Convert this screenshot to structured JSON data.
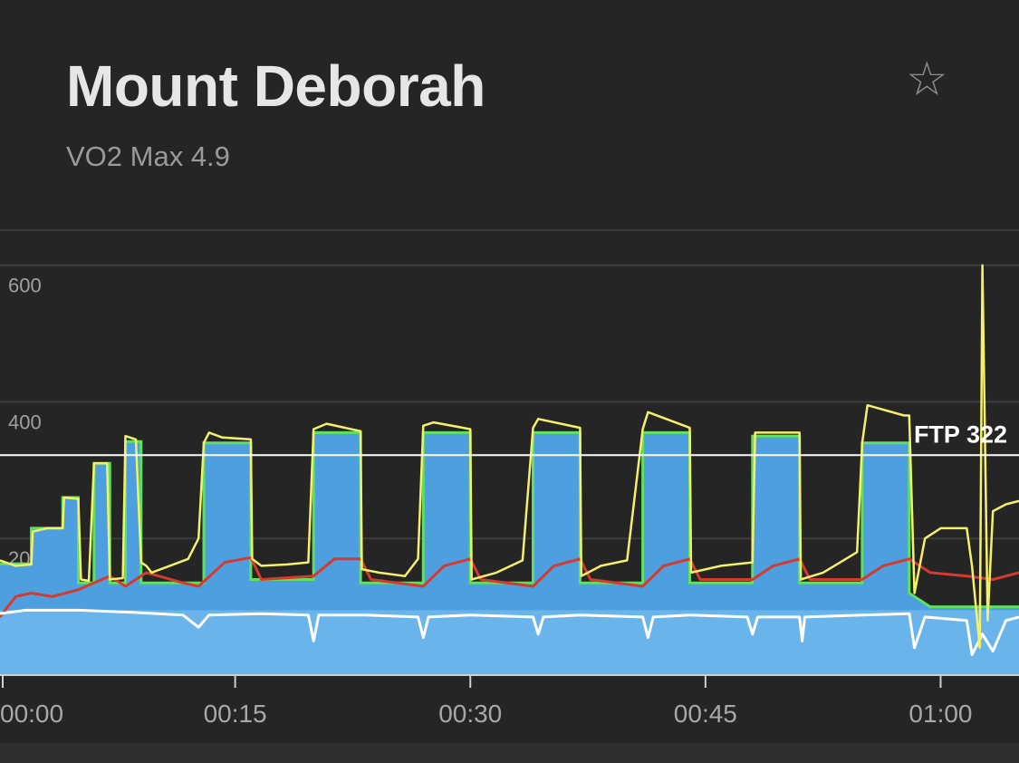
{
  "header": {
    "title": "Mount Deborah",
    "subtitle": "VO2 Max 4.9",
    "favorite_icon": "star-outline-icon"
  },
  "colors": {
    "background": "#252525",
    "target_fill": "#4d9fe0",
    "target_outline": "#5fe05f",
    "power": "#f5f06a",
    "heart_rate": "#d63a2e",
    "cadence": "#ffffff",
    "ftp_line": "#ffffff"
  },
  "chart_data": {
    "type": "line",
    "x_unit": "seconds",
    "xlim": [
      0,
      3900
    ],
    "ylim": [
      0,
      650
    ],
    "y_ticks": [
      {
        "value": 200,
        "label": "200"
      },
      {
        "value": 400,
        "label": "400"
      },
      {
        "value": 600,
        "label": "600"
      }
    ],
    "x_ticks": [
      {
        "value": 0,
        "label": "00:00"
      },
      {
        "value": 900,
        "label": "00:15"
      },
      {
        "value": 1800,
        "label": "00:30"
      },
      {
        "value": 2700,
        "label": "00:45"
      },
      {
        "value": 3600,
        "label": "01:00"
      }
    ],
    "grid": true,
    "ftp": {
      "value": 322,
      "label": "FTP 322"
    },
    "target_power": {
      "name": "",
      "points": [
        [
          0,
          163
        ],
        [
          120,
          163
        ],
        [
          120,
          215
        ],
        [
          240,
          215
        ],
        [
          240,
          260
        ],
        [
          300,
          260
        ],
        [
          300,
          135
        ],
        [
          360,
          135
        ],
        [
          360,
          310
        ],
        [
          420,
          310
        ],
        [
          420,
          135
        ],
        [
          480,
          135
        ],
        [
          480,
          342
        ],
        [
          540,
          342
        ],
        [
          540,
          135
        ],
        [
          780,
          135
        ],
        [
          780,
          340
        ],
        [
          960,
          340
        ],
        [
          960,
          140
        ],
        [
          1200,
          140
        ],
        [
          1200,
          355
        ],
        [
          1380,
          355
        ],
        [
          1380,
          135
        ],
        [
          1620,
          135
        ],
        [
          1620,
          355
        ],
        [
          1800,
          355
        ],
        [
          1800,
          135
        ],
        [
          2040,
          135
        ],
        [
          2040,
          355
        ],
        [
          2220,
          355
        ],
        [
          2220,
          135
        ],
        [
          2460,
          135
        ],
        [
          2460,
          355
        ],
        [
          2640,
          355
        ],
        [
          2640,
          135
        ],
        [
          2880,
          135
        ],
        [
          2880,
          350
        ],
        [
          3060,
          350
        ],
        [
          3060,
          135
        ],
        [
          3300,
          135
        ],
        [
          3300,
          340
        ],
        [
          3480,
          340
        ],
        [
          3480,
          120
        ],
        [
          3560,
          100
        ],
        [
          3900,
          100
        ]
      ]
    },
    "power": {
      "name": "",
      "points": [
        [
          0,
          168
        ],
        [
          60,
          160
        ],
        [
          120,
          162
        ],
        [
          125,
          210
        ],
        [
          180,
          215
        ],
        [
          240,
          215
        ],
        [
          245,
          260
        ],
        [
          300,
          258
        ],
        [
          310,
          140
        ],
        [
          340,
          138
        ],
        [
          360,
          310
        ],
        [
          410,
          310
        ],
        [
          420,
          140
        ],
        [
          470,
          142
        ],
        [
          480,
          350
        ],
        [
          520,
          345
        ],
        [
          540,
          165
        ],
        [
          560,
          160
        ],
        [
          580,
          150
        ],
        [
          650,
          160
        ],
        [
          720,
          170
        ],
        [
          760,
          200
        ],
        [
          780,
          340
        ],
        [
          800,
          355
        ],
        [
          850,
          348
        ],
        [
          960,
          345
        ],
        [
          965,
          170
        ],
        [
          1000,
          160
        ],
        [
          1100,
          162
        ],
        [
          1180,
          165
        ],
        [
          1200,
          360
        ],
        [
          1250,
          368
        ],
        [
          1380,
          357
        ],
        [
          1385,
          155
        ],
        [
          1450,
          150
        ],
        [
          1550,
          145
        ],
        [
          1600,
          170
        ],
        [
          1620,
          365
        ],
        [
          1660,
          370
        ],
        [
          1800,
          360
        ],
        [
          1805,
          140
        ],
        [
          1900,
          150
        ],
        [
          2000,
          168
        ],
        [
          2040,
          362
        ],
        [
          2060,
          375
        ],
        [
          2220,
          362
        ],
        [
          2225,
          145
        ],
        [
          2300,
          160
        ],
        [
          2400,
          168
        ],
        [
          2460,
          360
        ],
        [
          2480,
          385
        ],
        [
          2640,
          362
        ],
        [
          2645,
          150
        ],
        [
          2760,
          160
        ],
        [
          2880,
          165
        ],
        [
          2890,
          355
        ],
        [
          3060,
          355
        ],
        [
          3065,
          140
        ],
        [
          3150,
          150
        ],
        [
          3280,
          180
        ],
        [
          3300,
          340
        ],
        [
          3320,
          395
        ],
        [
          3460,
          380
        ],
        [
          3480,
          380
        ],
        [
          3500,
          120
        ],
        [
          3540,
          200
        ],
        [
          3600,
          215
        ],
        [
          3700,
          215
        ],
        [
          3720,
          160
        ],
        [
          3750,
          40
        ],
        [
          3760,
          600
        ],
        [
          3780,
          80
        ],
        [
          3800,
          240
        ],
        [
          3850,
          250
        ],
        [
          3900,
          255
        ]
      ]
    },
    "heart_rate": {
      "name": "",
      "points": [
        [
          0,
          85
        ],
        [
          60,
          115
        ],
        [
          120,
          120
        ],
        [
          200,
          115
        ],
        [
          300,
          125
        ],
        [
          420,
          145
        ],
        [
          480,
          130
        ],
        [
          560,
          150
        ],
        [
          700,
          135
        ],
        [
          760,
          130
        ],
        [
          860,
          165
        ],
        [
          960,
          172
        ],
        [
          1000,
          140
        ],
        [
          1200,
          145
        ],
        [
          1280,
          170
        ],
        [
          1380,
          170
        ],
        [
          1420,
          140
        ],
        [
          1620,
          130
        ],
        [
          1700,
          160
        ],
        [
          1800,
          170
        ],
        [
          1840,
          140
        ],
        [
          2040,
          130
        ],
        [
          2120,
          160
        ],
        [
          2220,
          170
        ],
        [
          2260,
          140
        ],
        [
          2460,
          130
        ],
        [
          2540,
          160
        ],
        [
          2640,
          170
        ],
        [
          2680,
          140
        ],
        [
          2880,
          140
        ],
        [
          2960,
          160
        ],
        [
          3060,
          170
        ],
        [
          3100,
          140
        ],
        [
          3300,
          140
        ],
        [
          3380,
          160
        ],
        [
          3480,
          170
        ],
        [
          3560,
          150
        ],
        [
          3700,
          145
        ],
        [
          3800,
          140
        ],
        [
          3900,
          150
        ]
      ]
    },
    "cadence": {
      "name": "",
      "points": [
        [
          0,
          90
        ],
        [
          100,
          95
        ],
        [
          300,
          95
        ],
        [
          500,
          92
        ],
        [
          700,
          88
        ],
        [
          760,
          70
        ],
        [
          800,
          88
        ],
        [
          1000,
          90
        ],
        [
          1180,
          88
        ],
        [
          1200,
          50
        ],
        [
          1220,
          88
        ],
        [
          1400,
          88
        ],
        [
          1600,
          85
        ],
        [
          1620,
          55
        ],
        [
          1640,
          85
        ],
        [
          1800,
          88
        ],
        [
          2040,
          85
        ],
        [
          2060,
          60
        ],
        [
          2080,
          85
        ],
        [
          2220,
          88
        ],
        [
          2460,
          85
        ],
        [
          2480,
          55
        ],
        [
          2500,
          85
        ],
        [
          2640,
          88
        ],
        [
          2860,
          85
        ],
        [
          2880,
          60
        ],
        [
          2900,
          85
        ],
        [
          3060,
          85
        ],
        [
          3070,
          50
        ],
        [
          3080,
          85
        ],
        [
          3300,
          88
        ],
        [
          3480,
          90
        ],
        [
          3500,
          40
        ],
        [
          3540,
          85
        ],
        [
          3700,
          80
        ],
        [
          3720,
          30
        ],
        [
          3760,
          60
        ],
        [
          3800,
          35
        ],
        [
          3850,
          80
        ],
        [
          3900,
          85
        ]
      ]
    }
  }
}
